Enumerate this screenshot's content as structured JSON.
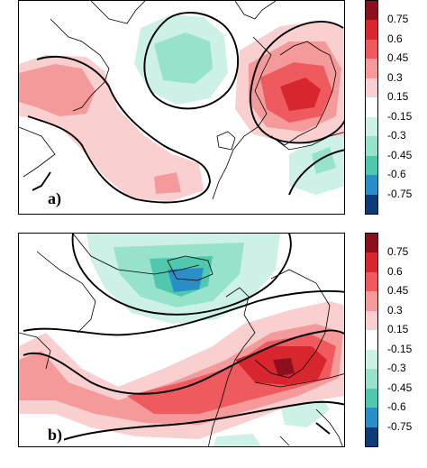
{
  "panels": [
    {
      "id": "a",
      "label": "a)"
    },
    {
      "id": "b",
      "label": "b)"
    }
  ],
  "colorbar": {
    "ticks": [
      "0.75",
      "0.6",
      "0.45",
      "0.3",
      "0.15",
      "-0.15",
      "-0.3",
      "-0.45",
      "-0.6",
      "-0.75"
    ],
    "colors": [
      "#8b0f1c",
      "#d7262e",
      "#ee5a5e",
      "#f49a9a",
      "#f9cfcf",
      "#ffffff",
      "#cdf1e6",
      "#96e2cb",
      "#4fc8ad",
      "#2a8fc7",
      "#0f3c78"
    ]
  },
  "fill_colors": {
    "light_red": "#f9cfcf",
    "mid_red": "#f49a9a",
    "red": "#ee5a5e",
    "strong_red": "#d7262e",
    "dark_red": "#8b0f1c",
    "light_green": "#cdf1e6",
    "green": "#96e2cb",
    "teal": "#4fc8ad",
    "blue": "#2a8fc7"
  }
}
